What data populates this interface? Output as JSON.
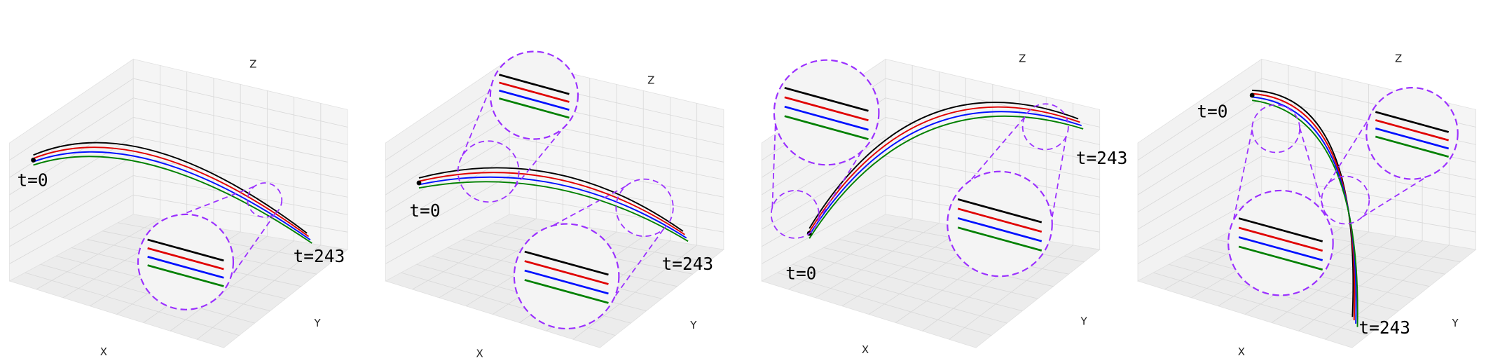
{
  "panels": [
    {
      "axes": {
        "x": "X",
        "y": "Y",
        "z": "Z"
      },
      "start_label": "t=0",
      "end_label": "t=243"
    },
    {
      "axes": {
        "x": "X",
        "y": "Y",
        "z": "Z"
      },
      "start_label": "t=0",
      "end_label": "t=243"
    },
    {
      "axes": {
        "x": "X",
        "y": "Y",
        "z": "Z"
      },
      "start_label": "t=0",
      "end_label": "t=243"
    },
    {
      "axes": {
        "x": "X",
        "y": "Y",
        "z": "Z"
      },
      "start_label": "t=0",
      "end_label": "t=243"
    }
  ]
}
